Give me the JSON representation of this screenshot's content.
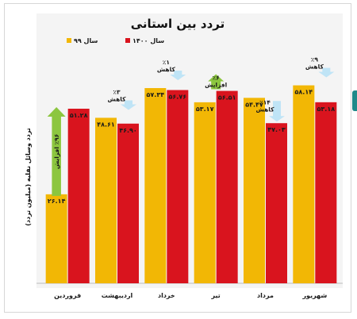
{
  "colors": {
    "series_99": "#f2b705",
    "series_1400": "#d9141e",
    "increase_arrow": "#8cc63f",
    "decrease_arrow": "#bfe4f6",
    "background": "#f4f4f4"
  },
  "chart_data": {
    "type": "bar",
    "title": "تردد بین استانی",
    "ylabel": "تردد وسائل نقلیه (میلیون تردد)",
    "categories": [
      "فروردین",
      "اردیبهشت",
      "خرداد",
      "تیر",
      "مرداد",
      "شهریور"
    ],
    "ylim": [
      0,
      62
    ],
    "legend_position": "top-left",
    "series": [
      {
        "name": "سال ۹۹",
        "values": [
          26.14,
          48.61,
          57.34,
          53.17,
          54.47,
          58.14
        ],
        "labels": [
          "۲۶.۱۴",
          "۴۸.۶۱",
          "۵۷.۳۴",
          "۵۳.۱۷",
          "۵۴.۴۷",
          "۵۸.۱۴"
        ]
      },
      {
        "name": "سال ۱۴۰۰",
        "values": [
          51.28,
          46.9,
          56.76,
          56.51,
          47.03,
          53.18
        ],
        "labels": [
          "۵۱.۲۸",
          "۴۶.۹۰",
          "۵۶.۷۶",
          "۵۶.۵۱",
          "۴۷.۰۳",
          "۵۳.۱۸"
        ]
      }
    ],
    "annotations": [
      {
        "category_index": 0,
        "direction": "increase",
        "percent": "٪۹۶",
        "text": "افزایش"
      },
      {
        "category_index": 1,
        "direction": "decrease",
        "percent": "٪۳",
        "text": "کاهش"
      },
      {
        "category_index": 2,
        "direction": "decrease",
        "percent": "٪۱",
        "text": "کاهش"
      },
      {
        "category_index": 3,
        "direction": "increase",
        "percent": "٪۶",
        "text": "افزایش"
      },
      {
        "category_index": 4,
        "direction": "decrease",
        "percent": "٪۱۴",
        "text": "کاهش"
      },
      {
        "category_index": 5,
        "direction": "decrease",
        "percent": "٪۹",
        "text": "کاهش"
      }
    ]
  }
}
